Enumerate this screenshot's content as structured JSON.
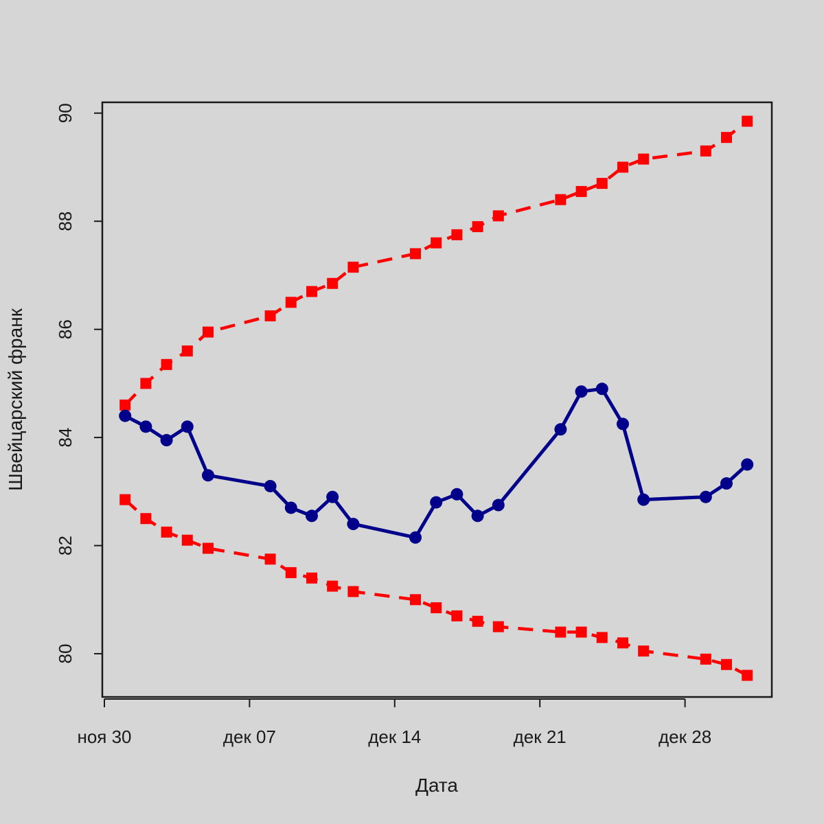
{
  "chart_data": {
    "type": "line",
    "title": "",
    "xlabel": "Дата",
    "ylabel": "Швейцарский франк",
    "x_tick_labels": [
      "ноя 30",
      "дек 07",
      "дек 14",
      "дек 21",
      "дек 28"
    ],
    "x_tick_dates": [
      "2022-11-30",
      "2022-12-07",
      "2022-12-14",
      "2022-12-21",
      "2022-12-28"
    ],
    "y_ticks": [
      80,
      82,
      84,
      86,
      88,
      90
    ],
    "ylim": [
      79.2,
      90.2
    ],
    "xlim": [
      "2022-11-30",
      "2023-01-01"
    ],
    "grid": false,
    "legend": "none",
    "colors": {
      "main": "#00008b",
      "bands": "#ff0000",
      "background": "#d6d6d6"
    },
    "x": [
      "2022-12-01",
      "2022-12-02",
      "2022-12-03",
      "2022-12-04",
      "2022-12-05",
      "2022-12-08",
      "2022-12-09",
      "2022-12-10",
      "2022-12-11",
      "2022-12-12",
      "2022-12-15",
      "2022-12-16",
      "2022-12-17",
      "2022-12-18",
      "2022-12-19",
      "2022-12-22",
      "2022-12-23",
      "2022-12-24",
      "2022-12-25",
      "2022-12-26",
      "2022-12-29",
      "2022-12-30",
      "2022-12-31"
    ],
    "series": [
      {
        "style": "solid",
        "color": "#00008b",
        "values": [
          84.4,
          84.2,
          83.95,
          84.2,
          83.3,
          83.1,
          82.7,
          82.55,
          82.9,
          82.4,
          82.15,
          82.8,
          82.95,
          82.55,
          82.75,
          84.15,
          84.85,
          84.9,
          84.25,
          82.85,
          82.9,
          83.15,
          83.5
        ]
      },
      {
        "style": "dashed",
        "color": "#ff0000",
        "values": [
          84.6,
          85.0,
          85.35,
          85.6,
          85.95,
          86.25,
          86.5,
          86.7,
          86.85,
          87.15,
          87.4,
          87.6,
          87.75,
          87.9,
          88.1,
          88.4,
          88.55,
          88.7,
          89.0,
          89.15,
          89.3,
          89.55,
          89.85
        ]
      },
      {
        "style": "dashed",
        "color": "#ff0000",
        "values": [
          82.85,
          82.5,
          82.25,
          82.1,
          81.95,
          81.75,
          81.5,
          81.4,
          81.25,
          81.15,
          81.0,
          80.85,
          80.7,
          80.6,
          80.5,
          80.4,
          80.4,
          80.3,
          80.2,
          80.05,
          79.9,
          79.8,
          79.6
        ]
      }
    ]
  }
}
